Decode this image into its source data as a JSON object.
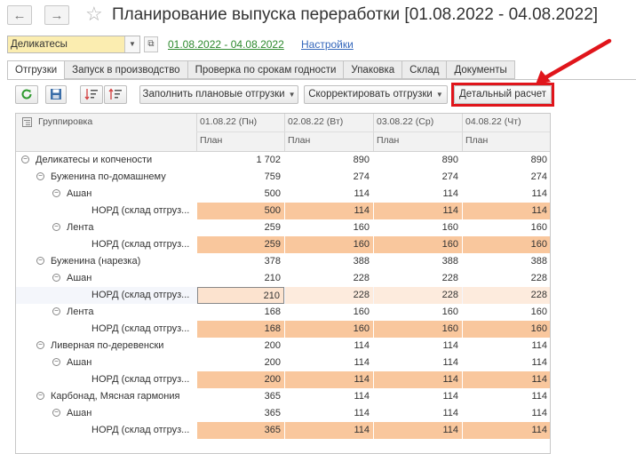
{
  "window": {
    "title": "Планирование выпуска переработки [01.08.2022 - 04.08.2022]",
    "back_icon": "←",
    "forward_icon": "→",
    "star_icon": "☆"
  },
  "filters": {
    "organization": "Деликатесы",
    "period_link": "01.08.2022 - 04.08.2022",
    "settings_link": "Настройки"
  },
  "tabs": [
    {
      "label": "Отгрузки"
    },
    {
      "label": "Запуск в производство"
    },
    {
      "label": "Проверка по срокам годности"
    },
    {
      "label": "Упаковка"
    },
    {
      "label": "Склад"
    },
    {
      "label": "Документы"
    }
  ],
  "toolbar": {
    "fill_label": "Заполнить плановые отгрузки",
    "adjust_label": "Скорректировать отгрузки",
    "detail_label": "Детальный расчет"
  },
  "grid": {
    "group_header": "Группировка",
    "columns": [
      {
        "date": "01.08.22 (Пн)",
        "sub": "План"
      },
      {
        "date": "02.08.22 (Вт)",
        "sub": "План"
      },
      {
        "date": "03.08.22 (Ср)",
        "sub": "План"
      },
      {
        "date": "04.08.22 (Чт)",
        "sub": "План"
      }
    ],
    "rows": [
      {
        "level": 0,
        "type": "group",
        "name": "Деликатесы и копчености",
        "values": [
          "1 702",
          "890",
          "890",
          "890"
        ]
      },
      {
        "level": 1,
        "type": "group",
        "name": "Буженина по-домашнему",
        "values": [
          "759",
          "274",
          "274",
          "274"
        ]
      },
      {
        "level": 2,
        "type": "group",
        "name": "Ашан",
        "values": [
          "500",
          "114",
          "114",
          "114"
        ]
      },
      {
        "level": 3,
        "type": "leaf",
        "name": "НОРД (склад отгруз...",
        "values": [
          "500",
          "114",
          "114",
          "114"
        ]
      },
      {
        "level": 2,
        "type": "group",
        "name": "Лента",
        "values": [
          "259",
          "160",
          "160",
          "160"
        ]
      },
      {
        "level": 3,
        "type": "leaf",
        "name": "НОРД (склад отгруз...",
        "values": [
          "259",
          "160",
          "160",
          "160"
        ]
      },
      {
        "level": 1,
        "type": "group",
        "name": "Буженина (нарезка)",
        "values": [
          "378",
          "388",
          "388",
          "388"
        ]
      },
      {
        "level": 2,
        "type": "group",
        "name": "Ашан",
        "values": [
          "210",
          "228",
          "228",
          "228"
        ]
      },
      {
        "level": 3,
        "type": "leaf",
        "selected": true,
        "name": "НОРД (склад отгруз...",
        "values": [
          "210",
          "228",
          "228",
          "228"
        ]
      },
      {
        "level": 2,
        "type": "group",
        "name": "Лента",
        "values": [
          "168",
          "160",
          "160",
          "160"
        ]
      },
      {
        "level": 3,
        "type": "leaf",
        "name": "НОРД (склад отгруз...",
        "values": [
          "168",
          "160",
          "160",
          "160"
        ]
      },
      {
        "level": 1,
        "type": "group",
        "name": "Ливерная по-деревенски",
        "values": [
          "200",
          "114",
          "114",
          "114"
        ]
      },
      {
        "level": 2,
        "type": "group",
        "name": "Ашан",
        "values": [
          "200",
          "114",
          "114",
          "114"
        ]
      },
      {
        "level": 3,
        "type": "leaf",
        "name": "НОРД (склад отгруз...",
        "values": [
          "200",
          "114",
          "114",
          "114"
        ]
      },
      {
        "level": 1,
        "type": "group",
        "name": "Карбонад, Мясная гармония",
        "values": [
          "365",
          "114",
          "114",
          "114"
        ]
      },
      {
        "level": 2,
        "type": "group",
        "name": "Ашан",
        "values": [
          "365",
          "114",
          "114",
          "114"
        ]
      },
      {
        "level": 3,
        "type": "leaf",
        "name": "НОРД (склад отгруз...",
        "values": [
          "365",
          "114",
          "114",
          "114"
        ]
      }
    ]
  },
  "colors": {
    "accent_green": "#2f8a2f",
    "link_blue": "#3366bb",
    "highlight_red": "#e0151b",
    "leaf_fill": "#f9c79d"
  }
}
